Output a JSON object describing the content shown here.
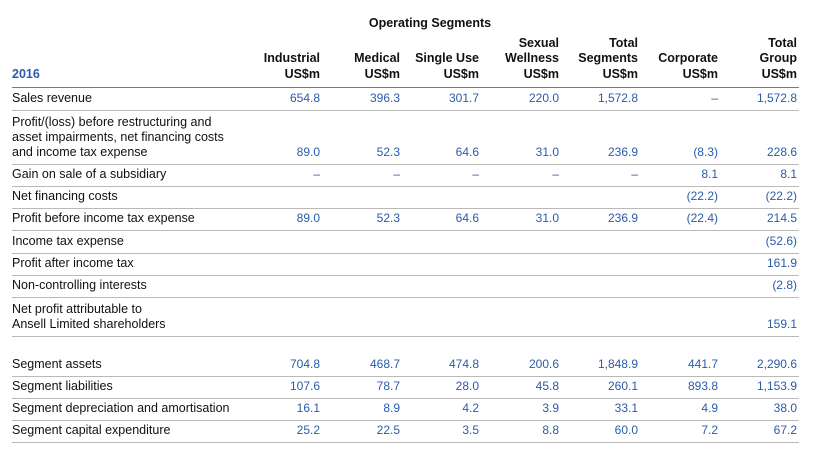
{
  "table": {
    "group_header": "Operating Segments",
    "year": "2016",
    "columns": [
      {
        "key": "industrial",
        "lines": [
          "Industrial",
          "US$m"
        ]
      },
      {
        "key": "medical",
        "lines": [
          "Medical",
          "US$m"
        ]
      },
      {
        "key": "single_use",
        "lines": [
          "Single Use",
          "US$m"
        ]
      },
      {
        "key": "sexual_wellness",
        "lines": [
          "Sexual",
          "Wellness",
          "US$m"
        ]
      },
      {
        "key": "total_segments",
        "lines": [
          "Total",
          "Segments",
          "US$m"
        ]
      },
      {
        "key": "corporate",
        "lines": [
          "Corporate",
          "US$m"
        ]
      },
      {
        "key": "total_group",
        "lines": [
          "Total",
          "Group",
          "US$m"
        ]
      }
    ],
    "rows": [
      {
        "label": [
          "Sales revenue"
        ],
        "values": [
          "654.8",
          "396.3",
          "301.7",
          "220.0",
          "1,572.8",
          "–",
          "1,572.8"
        ]
      },
      {
        "label": [
          "Profit/(loss) before restructuring and",
          "asset impairments, net financing costs",
          "and income tax expense"
        ],
        "values": [
          "89.0",
          "52.3",
          "64.6",
          "31.0",
          "236.9",
          "(8.3)",
          "228.6"
        ]
      },
      {
        "label": [
          "Gain on sale of a subsidiary"
        ],
        "values": [
          "–",
          "–",
          "–",
          "–",
          "–",
          "8.1",
          "8.1"
        ]
      },
      {
        "label": [
          "Net financing costs"
        ],
        "values": [
          "",
          "",
          "",
          "",
          "",
          "(22.2)",
          "(22.2)"
        ]
      },
      {
        "label": [
          "Profit before income tax expense"
        ],
        "values": [
          "89.0",
          "52.3",
          "64.6",
          "31.0",
          "236.9",
          "(22.4)",
          "214.5"
        ]
      },
      {
        "label": [
          "Income tax expense"
        ],
        "values": [
          "",
          "",
          "",
          "",
          "",
          "",
          "(52.6)"
        ]
      },
      {
        "label": [
          "Profit after income tax"
        ],
        "values": [
          "",
          "",
          "",
          "",
          "",
          "",
          "161.9"
        ]
      },
      {
        "label": [
          "Non-controlling interests"
        ],
        "values": [
          "",
          "",
          "",
          "",
          "",
          "",
          "(2.8)"
        ]
      },
      {
        "label": [
          "Net profit attributable to",
          "Ansell Limited shareholders"
        ],
        "values": [
          "",
          "",
          "",
          "",
          "",
          "",
          "159.1"
        ]
      },
      {
        "label": [
          "Segment assets"
        ],
        "values": [
          "704.8",
          "468.7",
          "474.8",
          "200.6",
          "1,848.9",
          "441.7",
          "2,290.6"
        ]
      },
      {
        "label": [
          "Segment liabilities"
        ],
        "values": [
          "107.6",
          "78.7",
          "28.0",
          "45.8",
          "260.1",
          "893.8",
          "1,153.9"
        ]
      },
      {
        "label": [
          "Segment depreciation and amortisation"
        ],
        "values": [
          "16.1",
          "8.9",
          "4.2",
          "3.9",
          "33.1",
          "4.9",
          "38.0"
        ]
      },
      {
        "label": [
          "Segment capital expenditure"
        ],
        "values": [
          "25.2",
          "22.5",
          "3.5",
          "8.8",
          "60.0",
          "7.2",
          "67.2"
        ]
      }
    ]
  }
}
